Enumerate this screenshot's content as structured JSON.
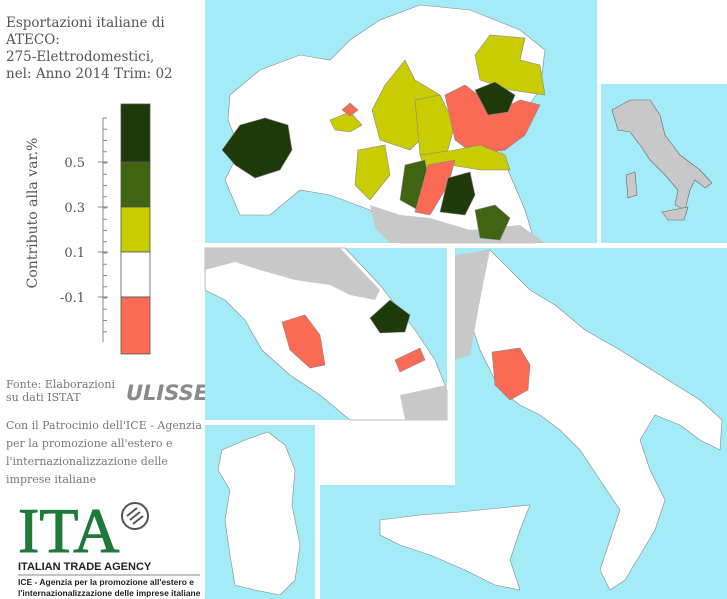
{
  "title": [
    "Esportazioni italiane di",
    "ATECO:",
    "275-Elettrodomestici,",
    "nel: Anno 2014 Trim: 02"
  ],
  "legend": {
    "label": "Contributo alla var.%",
    "ticks": [
      0.5,
      0.3,
      0.1,
      -0.1
    ],
    "colors": [
      "#1e3a0a",
      "#3f6412",
      "#c8cc00",
      "#ffffff",
      "#fa6a55"
    ]
  },
  "source": [
    "Fonte: Elaborazioni",
    "su dati ISTAT"
  ],
  "source_logo": "ULISSE",
  "patronage": [
    "Con il Patrocinio dell'ICE - Agenzia",
    "per la promozione all'estero e",
    "l'internazionalizzazione delle",
    "imprese italiane"
  ],
  "agency_logo": {
    "mark": "ITA",
    "name": "ITALIAN TRADE AGENCY",
    "subtitle": [
      "ICE - Agenzia per la promozione all'estero e",
      "l'internazionalizzazione delle imprese italiane"
    ]
  }
}
